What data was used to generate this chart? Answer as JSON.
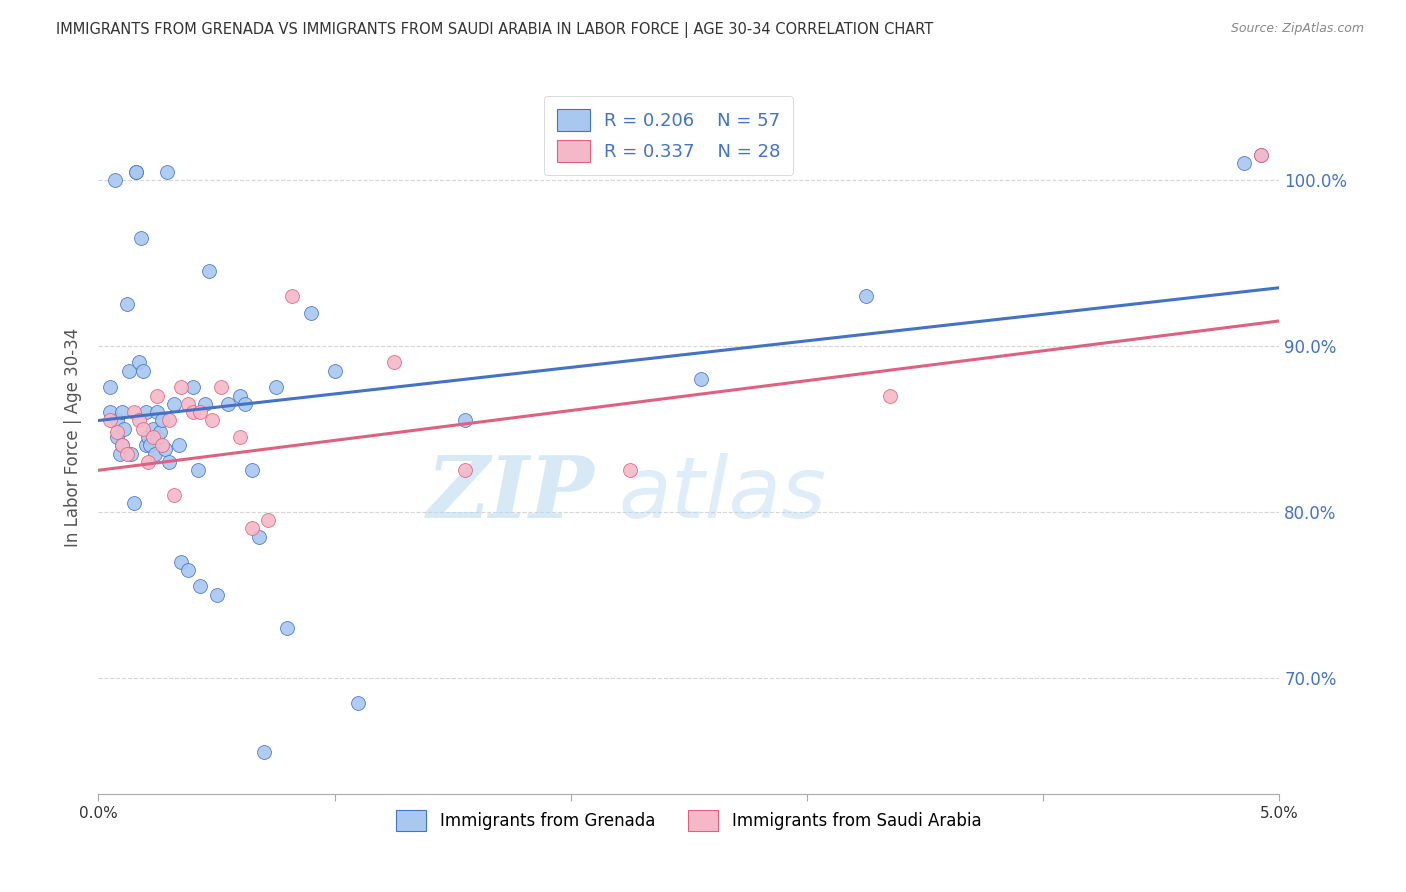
{
  "title": "IMMIGRANTS FROM GRENADA VS IMMIGRANTS FROM SAUDI ARABIA IN LABOR FORCE | AGE 30-34 CORRELATION CHART",
  "source": "Source: ZipAtlas.com",
  "ylabel": "In Labor Force | Age 30-34",
  "y_ticks": [
    70.0,
    80.0,
    90.0,
    100.0
  ],
  "y_tick_labels": [
    "70.0%",
    "80.0%",
    "90.0%",
    "100.0%"
  ],
  "x_ticks": [
    0.0,
    1.0,
    2.0,
    3.0,
    4.0,
    5.0
  ],
  "x_tick_labels_visible": [
    "0.0%",
    "",
    "",
    "",
    "",
    "5.0%"
  ],
  "xlim": [
    0.0,
    5.0
  ],
  "ylim": [
    63.0,
    106.0
  ],
  "blue_color": "#a8c8f0",
  "pink_color": "#f5b8c8",
  "blue_line_color": "#4472c4",
  "pink_line_color": "#e06080",
  "legend_blue_R": "R = 0.206",
  "legend_blue_N": "N = 57",
  "legend_pink_R": "R = 0.337",
  "legend_pink_N": "N = 28",
  "legend_label_blue": "Immigrants from Grenada",
  "legend_label_pink": "Immigrants from Saudi Arabia",
  "watermark_zip": "ZIP",
  "watermark_atlas": "atlas",
  "blue_x": [
    0.05,
    0.05,
    0.07,
    0.08,
    0.08,
    0.09,
    0.1,
    0.1,
    0.11,
    0.12,
    0.13,
    0.14,
    0.15,
    0.16,
    0.16,
    0.17,
    0.18,
    0.19,
    0.2,
    0.2,
    0.21,
    0.22,
    0.23,
    0.24,
    0.25,
    0.25,
    0.26,
    0.27,
    0.28,
    0.29,
    0.3,
    0.32,
    0.34,
    0.35,
    0.38,
    0.4,
    0.42,
    0.43,
    0.45,
    0.47,
    0.5,
    0.55,
    0.6,
    0.62,
    0.65,
    0.68,
    0.7,
    0.75,
    0.8,
    0.9,
    1.0,
    1.1,
    1.55,
    2.55,
    3.25,
    4.85,
    4.92
  ],
  "blue_y": [
    87.5,
    86.0,
    100.0,
    85.5,
    84.5,
    83.5,
    86.0,
    84.0,
    85.0,
    92.5,
    88.5,
    83.5,
    80.5,
    100.5,
    100.5,
    89.0,
    96.5,
    88.5,
    86.0,
    84.0,
    84.5,
    84.0,
    85.0,
    83.5,
    84.5,
    86.0,
    84.8,
    85.5,
    83.8,
    100.5,
    83.0,
    86.5,
    84.0,
    77.0,
    76.5,
    87.5,
    82.5,
    75.5,
    86.5,
    94.5,
    75.0,
    86.5,
    87.0,
    86.5,
    82.5,
    78.5,
    65.5,
    87.5,
    73.0,
    92.0,
    88.5,
    68.5,
    85.5,
    88.0,
    93.0,
    101.0,
    101.5
  ],
  "pink_x": [
    0.05,
    0.08,
    0.1,
    0.12,
    0.15,
    0.17,
    0.19,
    0.21,
    0.23,
    0.25,
    0.27,
    0.3,
    0.32,
    0.35,
    0.38,
    0.4,
    0.43,
    0.48,
    0.52,
    0.6,
    0.65,
    0.72,
    0.82,
    1.25,
    1.55,
    2.25,
    3.35,
    4.92
  ],
  "pink_y": [
    85.5,
    84.8,
    84.0,
    83.5,
    86.0,
    85.5,
    85.0,
    83.0,
    84.5,
    87.0,
    84.0,
    85.5,
    81.0,
    87.5,
    86.5,
    86.0,
    86.0,
    85.5,
    87.5,
    84.5,
    79.0,
    79.5,
    93.0,
    89.0,
    82.5,
    82.5,
    87.0,
    101.5
  ],
  "blue_trendline": [
    0.0,
    5.0,
    85.5,
    93.5
  ],
  "pink_trendline": [
    0.0,
    5.0,
    82.5,
    91.5
  ],
  "watermark_color": "#d0e8f8",
  "grid_color": "#cccccc",
  "title_color": "#333333",
  "axis_label_color": "#555555",
  "right_tick_color": "#4472c4"
}
